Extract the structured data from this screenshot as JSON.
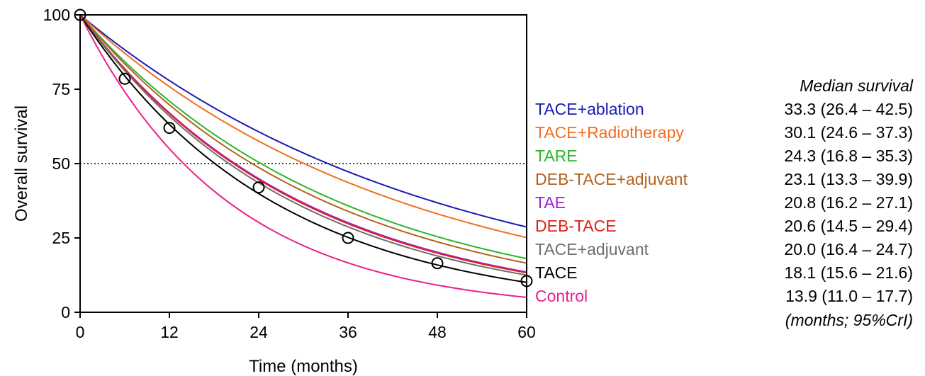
{
  "chart_data": {
    "type": "line",
    "xlabel": "Time (months)",
    "ylabel": "Overall survival",
    "xlim": [
      0,
      60
    ],
    "ylim": [
      0,
      100
    ],
    "x_ticks": [
      "0",
      "12",
      "24",
      "36",
      "48",
      "60"
    ],
    "y_ticks": [
      "0",
      "25",
      "50",
      "75",
      "100"
    ],
    "reference_line_y": 50,
    "series": [
      {
        "name": "TACE+ablation",
        "color": "#1a1ab4",
        "median": 33.3,
        "median_text": "33.3 (26.4 – 42.5)"
      },
      {
        "name": "TACE+Radiotherapy",
        "color": "#f26d1f",
        "median": 30.1,
        "median_text": "30.1 (24.6 – 37.3)"
      },
      {
        "name": "TARE",
        "color": "#2bb52b",
        "median": 24.3,
        "median_text": "24.3 (16.8 – 35.3)"
      },
      {
        "name": "DEB-TACE+adjuvant",
        "color": "#b5621e",
        "median": 23.1,
        "median_text": "23.1 (13.3 – 39.9)"
      },
      {
        "name": "TAE",
        "color": "#a020d0",
        "median": 20.8,
        "median_text": "20.8 (16.2 – 27.1)"
      },
      {
        "name": "DEB-TACE",
        "color": "#e0201c",
        "median": 20.6,
        "median_text": "20.6 (14.5 – 29.4)"
      },
      {
        "name": "TACE+adjuvant",
        "color": "#6e6e6e",
        "median": 20.0,
        "median_text": "20.0 (16.4 – 24.7)"
      },
      {
        "name": "TACE",
        "color": "#000000",
        "median": 18.1,
        "median_text": "18.1 (15.6 – 21.6)"
      },
      {
        "name": "Control",
        "color": "#e8218c",
        "median": 13.9,
        "median_text": "13.9 (11.0 – 17.7)"
      }
    ],
    "observed_points": {
      "x": [
        0,
        6,
        12,
        24,
        36,
        48,
        60
      ],
      "y": [
        100,
        78.5,
        62,
        42,
        25,
        16.5,
        10.5
      ]
    }
  },
  "median_panel": {
    "title": "Median survival",
    "note": "(months; 95%CrI)"
  }
}
